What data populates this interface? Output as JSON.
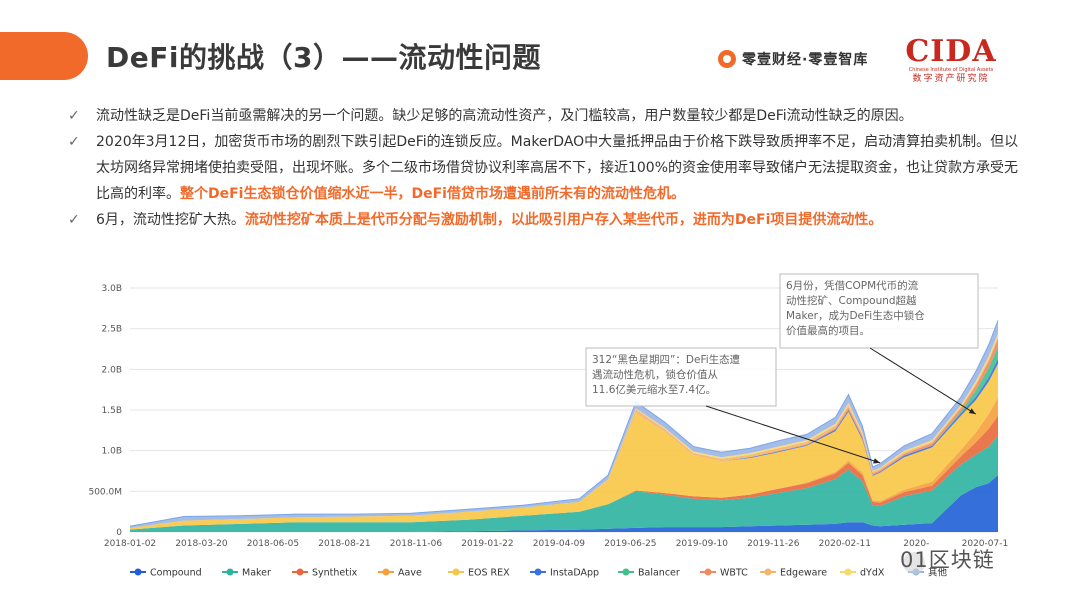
{
  "header": {
    "title": "DeFi的挑战（3）——流动性问题",
    "brand": "零壹财经·零壹智库",
    "cida_logo": "CIDA",
    "cida_sub": "Chinese Institute of Digital Assets",
    "cida_cn": "数字资产研究院"
  },
  "bullets": [
    {
      "check": "✓",
      "text": "流动性缺乏是DeFi当前亟需解决的另一个问题。缺少足够的高流动性资产，及门槛较高，用户数量较少都是DeFi流动性缺乏的原因。",
      "highlight": ""
    },
    {
      "check": "✓",
      "text": "2020年3月12日，加密货币市场的剧烈下跌引起DeFi的连锁反应。MakerDAO中大量抵押品由于价格下跌导致质押率不足，启动清算拍卖机制。但以太坊网络异常拥堵使拍卖受阻，出现坏账。多个二级市场借贷协议利率高居不下，接近100%的资金使用率导致储户无法提取资金，也让贷款方承受无比高的利率。",
      "highlight": "整个DeFi生态锁仓价值缩水近一半，DeFi借贷市场遭遇前所未有的流动性危机。"
    },
    {
      "check": "✓",
      "text": "6月，流动性挖矿大热。",
      "highlight": "流动性挖矿本质上是代币分配与激励机制，以此吸引用户存入某些代币，进而为DeFi项目提供流动性。"
    }
  ],
  "watermark": "01区块链",
  "chart_data": {
    "type": "area",
    "stacked": true,
    "y_ticks": [
      "0",
      "500.0M",
      "1.0B",
      "1.5B",
      "2.0B",
      "2.5B",
      "3.0B"
    ],
    "ylim": [
      0,
      3.0
    ],
    "y_unit": "B",
    "x_ticks": [
      "2018-01-02",
      "2018-03-20",
      "2018-06-05",
      "2018-08-21",
      "2018-11-06",
      "2019-01-22",
      "2019-04-09",
      "2019-06-25",
      "2019-09-10",
      "2019-11-26",
      "2020-02-11",
      "2020-04-28",
      "2020-07-14"
    ],
    "x_ticks_display": [
      "2018-01-02",
      "2018-03-20",
      "2018-06-05",
      "2018-08-21",
      "2018-11-06",
      "2019-01-22",
      "2019-04-09",
      "2019-06-25",
      "2019-09-10",
      "2019-11-26",
      "2020-02-11",
      "2020-",
      "2020-07-14"
    ],
    "grid": true,
    "legend_position": "bottom",
    "x": [
      "2018-01-02",
      "2018-03-01",
      "2018-05-01",
      "2018-07-01",
      "2018-09-01",
      "2018-11-01",
      "2019-01-01",
      "2019-03-01",
      "2019-05-01",
      "2019-06-01",
      "2019-07-01",
      "2019-08-01",
      "2019-09-01",
      "2019-10-01",
      "2019-11-01",
      "2019-12-01",
      "2020-01-01",
      "2020-02-01",
      "2020-02-15",
      "2020-03-01",
      "2020-03-12",
      "2020-03-20",
      "2020-04-15",
      "2020-05-15",
      "2020-06-15",
      "2020-07-01",
      "2020-07-15",
      "2020-07-25"
    ],
    "series": [
      {
        "name": "Compound",
        "color": "#1f5fd6",
        "values": [
          0,
          0,
          0,
          0,
          0,
          0,
          0.01,
          0.02,
          0.03,
          0.04,
          0.05,
          0.06,
          0.06,
          0.06,
          0.07,
          0.08,
          0.09,
          0.1,
          0.12,
          0.12,
          0.08,
          0.07,
          0.09,
          0.11,
          0.45,
          0.55,
          0.6,
          0.7
        ]
      },
      {
        "name": "Maker",
        "color": "#2cb3a0",
        "values": [
          0.03,
          0.08,
          0.1,
          0.12,
          0.12,
          0.12,
          0.14,
          0.18,
          0.22,
          0.3,
          0.45,
          0.4,
          0.35,
          0.33,
          0.35,
          0.4,
          0.45,
          0.55,
          0.65,
          0.5,
          0.25,
          0.25,
          0.35,
          0.4,
          0.38,
          0.4,
          0.45,
          0.48
        ]
      },
      {
        "name": "Synthetix",
        "color": "#e8683a",
        "values": [
          0,
          0,
          0,
          0,
          0,
          0,
          0,
          0,
          0,
          0,
          0.01,
          0.02,
          0.03,
          0.03,
          0.04,
          0.05,
          0.06,
          0.07,
          0.08,
          0.08,
          0.04,
          0.04,
          0.05,
          0.06,
          0.1,
          0.15,
          0.22,
          0.25
        ]
      },
      {
        "name": "Aave",
        "color": "#f5a03c",
        "values": [
          0,
          0,
          0,
          0,
          0,
          0,
          0,
          0,
          0,
          0,
          0,
          0,
          0,
          0,
          0,
          0,
          0.01,
          0.02,
          0.03,
          0.03,
          0.02,
          0.02,
          0.03,
          0.05,
          0.08,
          0.12,
          0.18,
          0.22
        ]
      },
      {
        "name": "EOS REX",
        "color": "#f7c645",
        "values": [
          0.02,
          0.06,
          0.06,
          0.06,
          0.07,
          0.08,
          0.1,
          0.1,
          0.12,
          0.3,
          0.95,
          0.75,
          0.5,
          0.45,
          0.45,
          0.45,
          0.45,
          0.5,
          0.6,
          0.4,
          0.3,
          0.35,
          0.4,
          0.42,
          0.42,
          0.4,
          0.4,
          0.42
        ]
      },
      {
        "name": "InstaDApp",
        "color": "#3a6fe0",
        "values": [
          0,
          0,
          0,
          0,
          0,
          0,
          0,
          0,
          0,
          0,
          0,
          0,
          0,
          0,
          0.01,
          0.01,
          0.01,
          0.02,
          0.02,
          0.02,
          0.01,
          0.01,
          0.02,
          0.02,
          0.03,
          0.04,
          0.05,
          0.06
        ]
      },
      {
        "name": "Balancer",
        "color": "#41c08e",
        "values": [
          0,
          0,
          0,
          0,
          0,
          0,
          0,
          0,
          0,
          0,
          0,
          0,
          0,
          0,
          0,
          0,
          0,
          0,
          0,
          0,
          0,
          0,
          0,
          0,
          0.02,
          0.08,
          0.12,
          0.15
        ]
      },
      {
        "name": "WBTC",
        "color": "#f08a60",
        "values": [
          0,
          0,
          0,
          0,
          0,
          0,
          0,
          0,
          0,
          0,
          0,
          0,
          0,
          0,
          0,
          0.01,
          0.01,
          0.02,
          0.03,
          0.03,
          0.02,
          0.02,
          0.02,
          0.03,
          0.04,
          0.06,
          0.08,
          0.1
        ]
      },
      {
        "name": "Edgeware",
        "color": "#f3b56a",
        "values": [
          0,
          0,
          0,
          0,
          0,
          0,
          0,
          0,
          0,
          0.01,
          0.05,
          0.04,
          0.03,
          0.03,
          0.03,
          0.03,
          0.03,
          0.03,
          0.03,
          0.02,
          0.02,
          0.02,
          0.02,
          0.02,
          0.02,
          0.02,
          0.02,
          0.02
        ]
      },
      {
        "name": "dYdX",
        "color": "#f8d86a",
        "values": [
          0,
          0,
          0,
          0,
          0,
          0,
          0,
          0,
          0,
          0,
          0.01,
          0.01,
          0.02,
          0.02,
          0.02,
          0.02,
          0.02,
          0.02,
          0.03,
          0.02,
          0.01,
          0.01,
          0.02,
          0.02,
          0.02,
          0.03,
          0.04,
          0.04
        ]
      },
      {
        "name": "其他",
        "color": "#9ab6e6",
        "values": [
          0.02,
          0.05,
          0.04,
          0.04,
          0.03,
          0.03,
          0.03,
          0.03,
          0.04,
          0.05,
          0.08,
          0.07,
          0.06,
          0.06,
          0.06,
          0.07,
          0.07,
          0.08,
          0.1,
          0.08,
          0.05,
          0.05,
          0.06,
          0.08,
          0.1,
          0.12,
          0.14,
          0.16
        ]
      }
    ],
    "annotations": [
      {
        "text_lines": [
          "312“黑色星期四”：DeFi生态遭",
          "遇流动性危机，锁仓价值从",
          "11.6亿美元缩水至7.4亿。"
        ],
        "target_x": "2020-03-20",
        "target_y": 0.85
      },
      {
        "text_lines": [
          "6月份，凭借COPM代币的流",
          "动性挖矿、Compound超越",
          "Maker，成为DeFi生态中锁仓",
          "价值最高的项目。"
        ],
        "target_x": "2020-07-01",
        "target_y": 1.45
      }
    ]
  }
}
